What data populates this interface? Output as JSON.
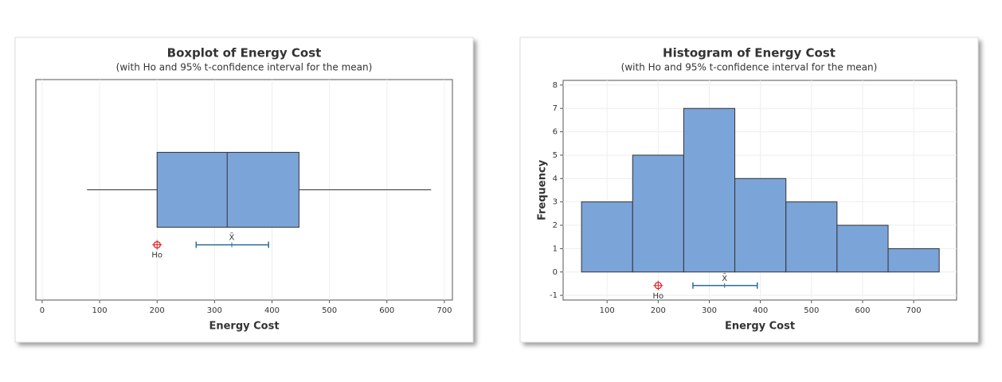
{
  "chart_data": [
    {
      "type": "boxplot",
      "title": "Boxplot of Energy Cost",
      "subtitle": "(with Ho and 95% t-confidence interval for the mean)",
      "x_label": "Energy Cost",
      "min": 78,
      "q1": 200,
      "median": 322,
      "q3": 447,
      "max": 677,
      "mean": 330,
      "mean_label": "X̄",
      "ci_lower": 268,
      "ci_upper": 394,
      "h0": 200,
      "h0_label": "Ho",
      "color": "#7ba4d9",
      "ci_color": "#2e6c9e",
      "h0_color": "#e02020",
      "xlim": [
        -11,
        714
      ],
      "xticks": [
        0,
        100,
        200,
        300,
        400,
        500,
        600,
        700
      ],
      "grid": true
    },
    {
      "type": "histogram",
      "title": "Histogram of Energy Cost",
      "subtitle": "(with Ho and 95% t-confidence interval for the mean)",
      "x_label": "Energy Cost",
      "y_label": "Frequency",
      "bins": [
        50,
        150,
        250,
        350,
        450,
        550,
        650,
        750
      ],
      "counts": [
        3,
        5,
        7,
        4,
        3,
        2,
        1
      ],
      "mean": 330,
      "mean_label": "X̄",
      "ci_lower": 268,
      "ci_upper": 394,
      "h0": 200,
      "h0_label": "Ho",
      "color": "#7ba4d9",
      "ci_color": "#2e6c9e",
      "h0_color": "#e02020",
      "xlim": [
        14,
        784
      ],
      "xticks": [
        100,
        200,
        300,
        400,
        500,
        600,
        700
      ],
      "ylim": [
        -1.2,
        8.2
      ],
      "yticks": [
        -1,
        0,
        1,
        2,
        3,
        4,
        5,
        6,
        7,
        8
      ],
      "grid": true
    }
  ]
}
